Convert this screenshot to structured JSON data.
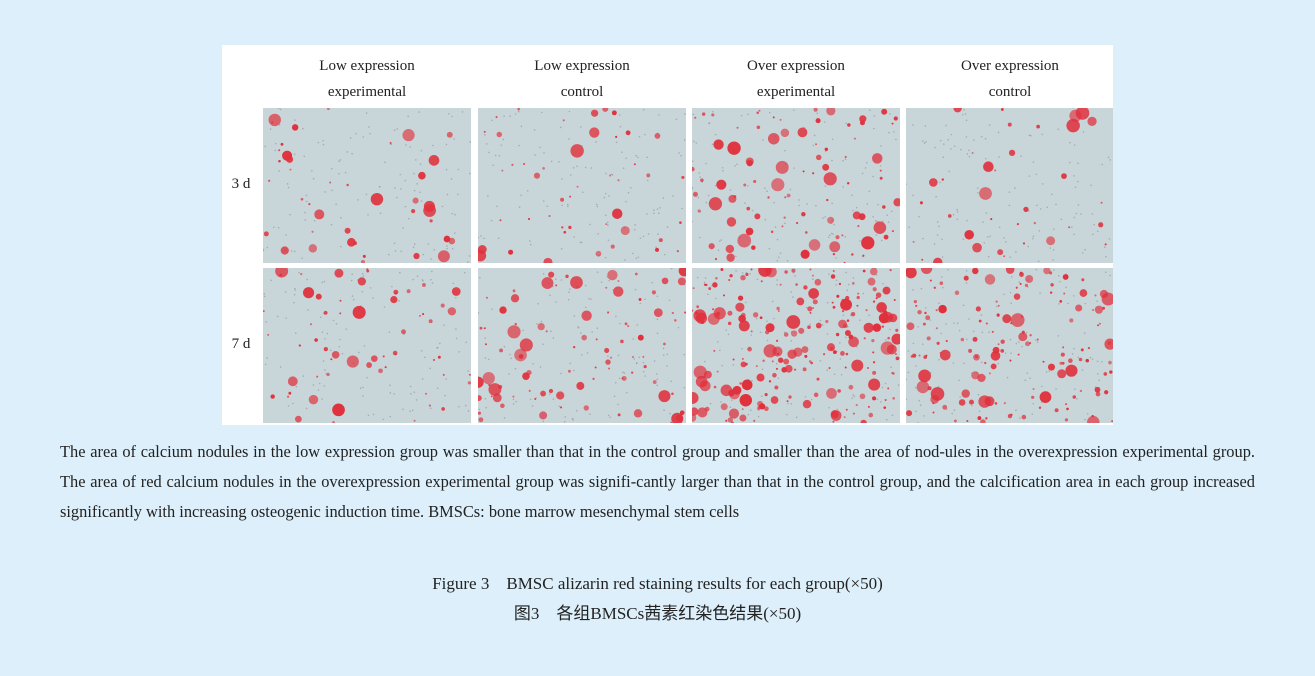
{
  "figure": {
    "column_headers": [
      [
        "Low expression",
        "experimental"
      ],
      [
        "Low expression",
        "control"
      ],
      [
        "Over expression",
        "experimental"
      ],
      [
        "Over expression",
        "control"
      ]
    ],
    "row_labels": [
      "3 d",
      "7 d"
    ],
    "caption": "The area of calcium nodules in the low expression group was smaller than that in the control group and smaller than the area of nod-ules in the overexpression experimental group. The area of red calcium nodules in the overexpression experimental group was signifi-cantly larger than that in the control group, and the calcification area in each group increased significantly with increasing osteogenic induction time. BMSCs: bone marrow mesenchymal stem cells",
    "title_en": "Figure 3　BMSC alizarin red staining results for each group(×50)",
    "title_zh": "图3　各组BMSCs茜素红染色结果(×50)"
  }
}
